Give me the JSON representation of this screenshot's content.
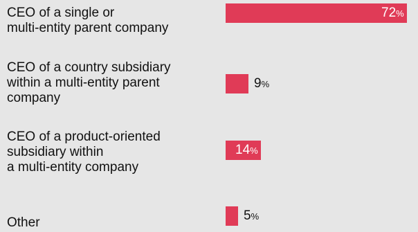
{
  "chart_data": {
    "type": "bar",
    "orientation": "horizontal",
    "categories": [
      "CEO of a single or\nmulti-entity parent company",
      "CEO of a country subsidiary\nwithin a multi-entity parent\ncompany",
      "CEO of a product-oriented\nsubsidiary within\na multi-entity company",
      "Other"
    ],
    "values": [
      72,
      9,
      14,
      5
    ],
    "value_unit": "%",
    "xlim": [
      0,
      72
    ],
    "bar_color": "#e03b57",
    "label_inside_color": "#ffffff",
    "label_outside_color": "#111111",
    "grid": false,
    "legend": "none"
  }
}
